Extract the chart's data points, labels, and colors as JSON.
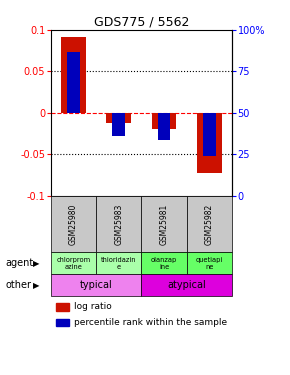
{
  "title": "GDS775 / 5562",
  "samples": [
    "GSM25980",
    "GSM25983",
    "GSM25981",
    "GSM25982"
  ],
  "log_ratio": [
    0.092,
    -0.012,
    -0.02,
    -0.073
  ],
  "pct_rank_converted": [
    0.074,
    -0.028,
    -0.033,
    -0.052
  ],
  "ylim": [
    -0.1,
    0.1
  ],
  "yticks_left": [
    -0.1,
    -0.05,
    0,
    0.05,
    0.1
  ],
  "yticks_right": [
    0,
    25,
    50,
    75,
    100
  ],
  "agents": [
    "chlorprom\nazine",
    "thioridazin\ne",
    "olanzap\nine",
    "quetiapi\nne"
  ],
  "bar_color_red": "#CC1100",
  "bar_color_blue": "#0000BB",
  "typical_color": "#EE82EE",
  "atypical_color": "#DD00DD",
  "sample_bg": "#C8C8C8",
  "agent_typical_color": "#AAFFAA",
  "agent_atypical_color": "#66FF66"
}
